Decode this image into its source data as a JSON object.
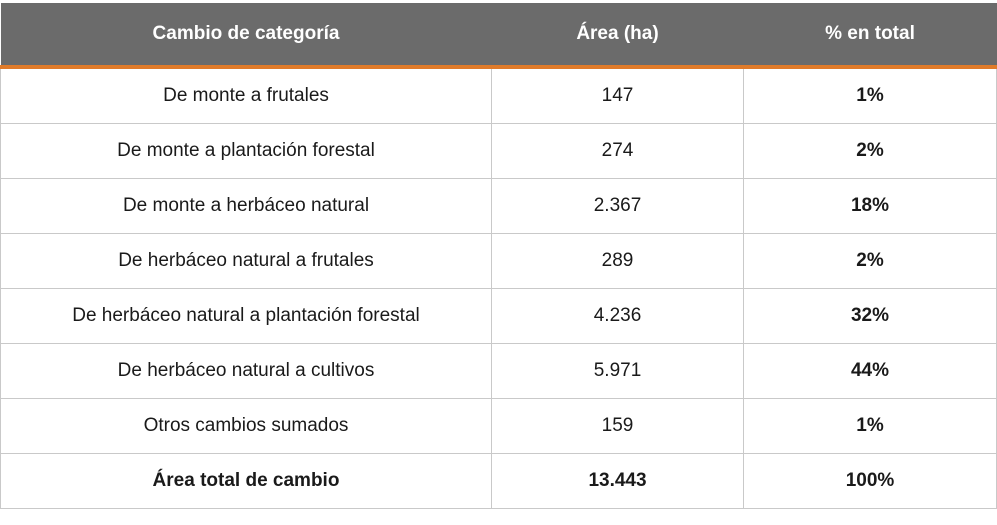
{
  "table": {
    "headers": [
      "Cambio de categoría",
      "Área (ha)",
      "% en total"
    ],
    "rows": [
      {
        "cambio": "De monte a frutales",
        "area": "147",
        "pct": "1%"
      },
      {
        "cambio": "De monte a plantación forestal",
        "area": "274",
        "pct": "2%"
      },
      {
        "cambio": "De monte a herbáceo natural",
        "area": "2.367",
        "pct": "18%"
      },
      {
        "cambio": "De herbáceo natural a frutales",
        "area": "289",
        "pct": "2%"
      },
      {
        "cambio": "De herbáceo natural a plantación forestal",
        "area": "4.236",
        "pct": "32%"
      },
      {
        "cambio": "De herbáceo natural a cultivos",
        "area": "5.971",
        "pct": "44%"
      },
      {
        "cambio": "Otros cambios sumados",
        "area": "159",
        "pct": "1%"
      }
    ],
    "total": {
      "cambio": "Área total de cambio",
      "area": "13.443",
      "pct": "100%"
    }
  },
  "colors": {
    "header_bg": "#6b6b6b",
    "header_accent": "#e07b2a",
    "grid": "#c9c9c9"
  }
}
